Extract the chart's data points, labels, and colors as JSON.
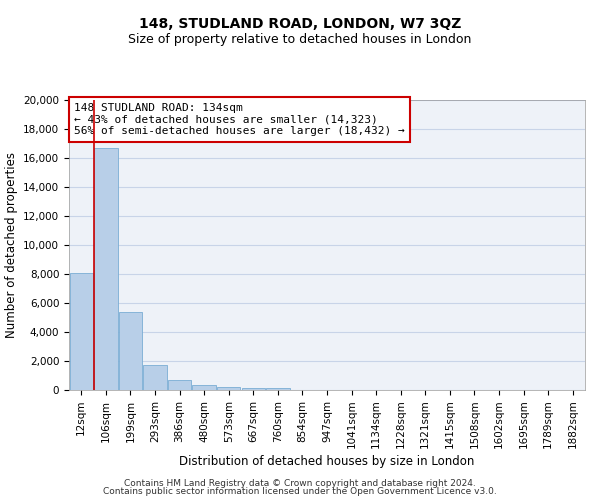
{
  "title": "148, STUDLAND ROAD, LONDON, W7 3QZ",
  "subtitle": "Size of property relative to detached houses in London",
  "xlabel": "Distribution of detached houses by size in London",
  "ylabel": "Number of detached properties",
  "footer_line1": "Contains HM Land Registry data © Crown copyright and database right 2024.",
  "footer_line2": "Contains public sector information licensed under the Open Government Licence v3.0.",
  "bar_labels": [
    "12sqm",
    "106sqm",
    "199sqm",
    "293sqm",
    "386sqm",
    "480sqm",
    "573sqm",
    "667sqm",
    "760sqm",
    "854sqm",
    "947sqm",
    "1041sqm",
    "1134sqm",
    "1228sqm",
    "1321sqm",
    "1415sqm",
    "1508sqm",
    "1602sqm",
    "1695sqm",
    "1789sqm",
    "1882sqm"
  ],
  "bar_values": [
    8050,
    16700,
    5350,
    1750,
    700,
    330,
    200,
    170,
    130,
    0,
    0,
    0,
    0,
    0,
    0,
    0,
    0,
    0,
    0,
    0,
    0
  ],
  "bar_color": "#b8cfe8",
  "bar_edge_color": "#7aadd4",
  "annotation_text": "148 STUDLAND ROAD: 134sqm\n← 43% of detached houses are smaller (14,323)\n56% of semi-detached houses are larger (18,432) →",
  "annotation_box_color": "#ffffff",
  "annotation_box_edge_color": "#cc0000",
  "ylim": [
    0,
    20000
  ],
  "yticks": [
    0,
    2000,
    4000,
    6000,
    8000,
    10000,
    12000,
    14000,
    16000,
    18000,
    20000
  ],
  "grid_color": "#c8d4e8",
  "bg_color": "#eef2f8",
  "red_line_color": "#cc0000",
  "title_fontsize": 10,
  "subtitle_fontsize": 9,
  "xlabel_fontsize": 8.5,
  "ylabel_fontsize": 8.5,
  "tick_fontsize": 7.5,
  "annotation_fontsize": 8,
  "footer_fontsize": 6.5
}
